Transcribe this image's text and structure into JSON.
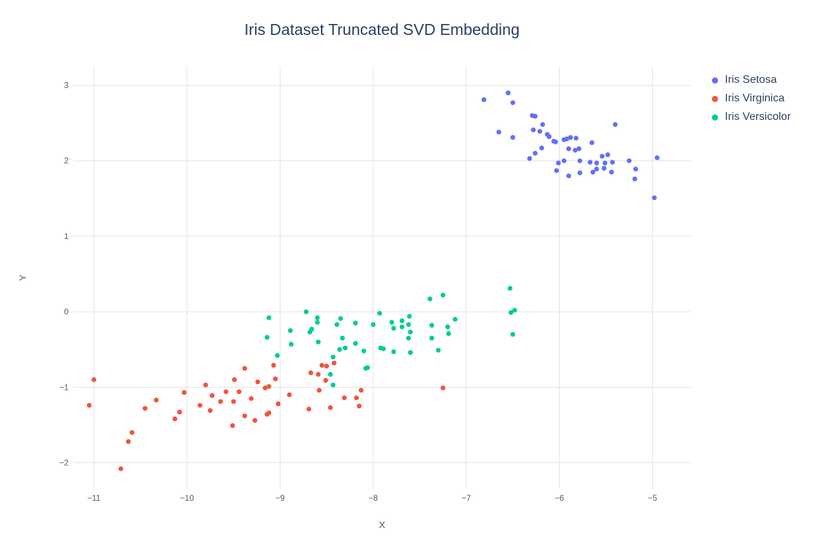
{
  "figure": {
    "background_color": "#ffffff",
    "grid_color": "#e2e2e2",
    "title_color": "#2a3f5f",
    "tick_color": "#4a5b76"
  },
  "chart_data": {
    "type": "scatter",
    "title": "Iris Dataset Truncated SVD Embedding",
    "xlabel": "X",
    "ylabel": "Y",
    "xlim": [
      -11.22,
      -4.59
    ],
    "ylim": [
      -2.35,
      3.25
    ],
    "grid": true,
    "legend_position": "right",
    "marker_radius_px": 3.5,
    "x_ticks": {
      "values": [
        -11,
        -10,
        -9,
        -8,
        -7,
        -6,
        -5
      ],
      "labels": [
        "−11",
        "−10",
        "−9",
        "−8",
        "−7",
        "−6",
        "−5"
      ]
    },
    "y_ticks": {
      "values": [
        3,
        2,
        1,
        0,
        -1,
        -2
      ],
      "labels": [
        "3",
        "2",
        "1",
        "0",
        "−1",
        "−2"
      ]
    },
    "series": [
      {
        "name": "Iris Setosa",
        "color": "#636efa",
        "points": [
          [
            -6.81,
            2.81
          ],
          [
            -6.55,
            2.9
          ],
          [
            -6.5,
            2.77
          ],
          [
            -6.65,
            2.38
          ],
          [
            -6.5,
            2.31
          ],
          [
            -6.29,
            2.6
          ],
          [
            -6.26,
            2.59
          ],
          [
            -6.18,
            2.48
          ],
          [
            -6.28,
            2.41
          ],
          [
            -6.21,
            2.39
          ],
          [
            -6.13,
            2.35
          ],
          [
            -6.11,
            2.32
          ],
          [
            -6.06,
            2.26
          ],
          [
            -6.04,
            2.25
          ],
          [
            -5.95,
            2.28
          ],
          [
            -5.92,
            2.29
          ],
          [
            -5.88,
            2.31
          ],
          [
            -5.82,
            2.3
          ],
          [
            -5.9,
            2.16
          ],
          [
            -5.83,
            2.14
          ],
          [
            -6.19,
            2.17
          ],
          [
            -6.26,
            2.1
          ],
          [
            -6.32,
            2.03
          ],
          [
            -6.01,
            1.97
          ],
          [
            -5.95,
            2.0
          ],
          [
            -6.03,
            1.87
          ],
          [
            -5.9,
            1.8
          ],
          [
            -5.4,
            2.48
          ],
          [
            -5.65,
            2.24
          ],
          [
            -5.79,
            2.16
          ],
          [
            -5.78,
            2.0
          ],
          [
            -5.67,
            1.98
          ],
          [
            -5.6,
            1.97
          ],
          [
            -5.54,
            2.06
          ],
          [
            -5.48,
            2.08
          ],
          [
            -5.51,
            1.97
          ],
          [
            -5.43,
            1.98
          ],
          [
            -5.78,
            1.84
          ],
          [
            -5.64,
            1.85
          ],
          [
            -5.6,
            1.89
          ],
          [
            -5.52,
            1.9
          ],
          [
            -5.44,
            1.85
          ],
          [
            -5.25,
            2.0
          ],
          [
            -5.18,
            1.89
          ],
          [
            -5.19,
            1.76
          ],
          [
            -4.95,
            2.04
          ],
          [
            -4.98,
            1.51
          ]
        ]
      },
      {
        "name": "Iris Virginica",
        "color": "#ef553b",
        "points": [
          [
            -11.0,
            -0.9
          ],
          [
            -11.05,
            -1.24
          ],
          [
            -10.45,
            -1.28
          ],
          [
            -10.33,
            -1.17
          ],
          [
            -10.08,
            -1.33
          ],
          [
            -10.13,
            -1.42
          ],
          [
            -10.03,
            -1.07
          ],
          [
            -10.59,
            -1.6
          ],
          [
            -10.63,
            -1.72
          ],
          [
            -10.71,
            -2.08
          ],
          [
            -9.07,
            -0.71
          ],
          [
            -9.38,
            -0.75
          ],
          [
            -9.49,
            -0.9
          ],
          [
            -9.24,
            -0.93
          ],
          [
            -9.05,
            -0.89
          ],
          [
            -9.8,
            -0.97
          ],
          [
            -9.16,
            -1.01
          ],
          [
            -9.12,
            -0.99
          ],
          [
            -9.58,
            -1.06
          ],
          [
            -9.44,
            -1.06
          ],
          [
            -8.9,
            -1.1
          ],
          [
            -9.73,
            -1.11
          ],
          [
            -9.64,
            -1.19
          ],
          [
            -9.5,
            -1.19
          ],
          [
            -9.31,
            -1.15
          ],
          [
            -9.86,
            -1.24
          ],
          [
            -9.75,
            -1.31
          ],
          [
            -9.02,
            -1.22
          ],
          [
            -9.38,
            -1.38
          ],
          [
            -9.14,
            -1.36
          ],
          [
            -9.12,
            -1.34
          ],
          [
            -9.27,
            -1.44
          ],
          [
            -9.51,
            -1.51
          ],
          [
            -8.67,
            -0.81
          ],
          [
            -8.59,
            -0.83
          ],
          [
            -8.55,
            -0.71
          ],
          [
            -8.5,
            -0.72
          ],
          [
            -8.42,
            -0.68
          ],
          [
            -8.51,
            -0.91
          ],
          [
            -8.58,
            -1.04
          ],
          [
            -8.31,
            -1.14
          ],
          [
            -8.18,
            -1.14
          ],
          [
            -8.13,
            -1.04
          ],
          [
            -8.69,
            -1.29
          ],
          [
            -8.46,
            -1.27
          ],
          [
            -8.15,
            -1.25
          ],
          [
            -7.25,
            -1.01
          ]
        ]
      },
      {
        "name": "Iris Versicolor",
        "color": "#00cc96",
        "points": [
          [
            -8.72,
            0.0
          ],
          [
            -9.12,
            -0.08
          ],
          [
            -8.6,
            -0.08
          ],
          [
            -8.6,
            -0.14
          ],
          [
            -8.35,
            -0.09
          ],
          [
            -8.39,
            -0.17
          ],
          [
            -8.89,
            -0.25
          ],
          [
            -8.68,
            -0.27
          ],
          [
            -8.66,
            -0.23
          ],
          [
            -9.14,
            -0.34
          ],
          [
            -8.88,
            -0.43
          ],
          [
            -8.59,
            -0.4
          ],
          [
            -8.33,
            -0.35
          ],
          [
            -8.36,
            -0.5
          ],
          [
            -8.3,
            -0.48
          ],
          [
            -9.03,
            -0.58
          ],
          [
            -8.43,
            -0.6
          ],
          [
            -8.46,
            -0.83
          ],
          [
            -8.43,
            -0.97
          ],
          [
            -8.06,
            -0.74
          ],
          [
            -7.39,
            0.17
          ],
          [
            -7.25,
            0.22
          ],
          [
            -7.93,
            -0.02
          ],
          [
            -7.61,
            -0.06
          ],
          [
            -8.19,
            -0.15
          ],
          [
            -8.0,
            -0.17
          ],
          [
            -7.8,
            -0.14
          ],
          [
            -7.69,
            -0.12
          ],
          [
            -7.69,
            -0.2
          ],
          [
            -7.78,
            -0.22
          ],
          [
            -7.62,
            -0.17
          ],
          [
            -7.6,
            -0.27
          ],
          [
            -7.37,
            -0.18
          ],
          [
            -7.62,
            -0.35
          ],
          [
            -7.37,
            -0.35
          ],
          [
            -8.19,
            -0.42
          ],
          [
            -8.1,
            -0.52
          ],
          [
            -7.92,
            -0.48
          ],
          [
            -7.89,
            -0.49
          ],
          [
            -7.78,
            -0.53
          ],
          [
            -7.6,
            -0.54
          ],
          [
            -7.3,
            -0.51
          ],
          [
            -8.08,
            -0.75
          ],
          [
            -6.53,
            0.31
          ],
          [
            -6.52,
            -0.01
          ],
          [
            -6.48,
            0.02
          ],
          [
            -7.12,
            -0.1
          ],
          [
            -7.2,
            -0.2
          ],
          [
            -7.19,
            -0.29
          ],
          [
            -6.5,
            -0.3
          ]
        ]
      }
    ]
  }
}
